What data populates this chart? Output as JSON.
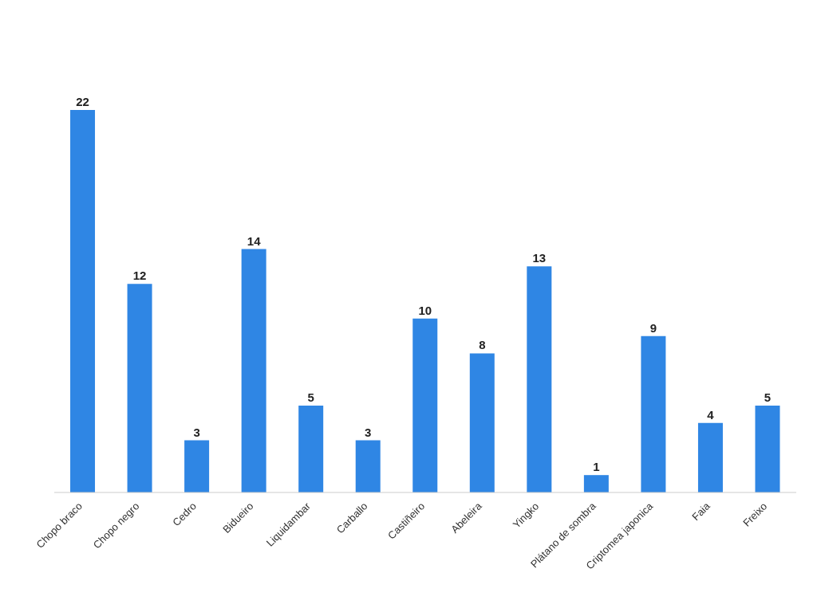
{
  "chart_data": {
    "type": "bar",
    "categories": [
      "Chopo braco",
      "Chopo negro",
      "Cedro",
      "Bidueiro",
      "Liquidambar",
      "Carballo",
      "Castiñeiro",
      "Abeleira",
      "Yingko",
      "Plátano de sombra",
      "Criptomea japonica",
      "Faia",
      "Freixo"
    ],
    "values": [
      22,
      12,
      3,
      14,
      5,
      3,
      10,
      8,
      13,
      1,
      9,
      4,
      5
    ],
    "color": "#2f86e4",
    "data_labels": true,
    "grid": false,
    "legend": false
  }
}
